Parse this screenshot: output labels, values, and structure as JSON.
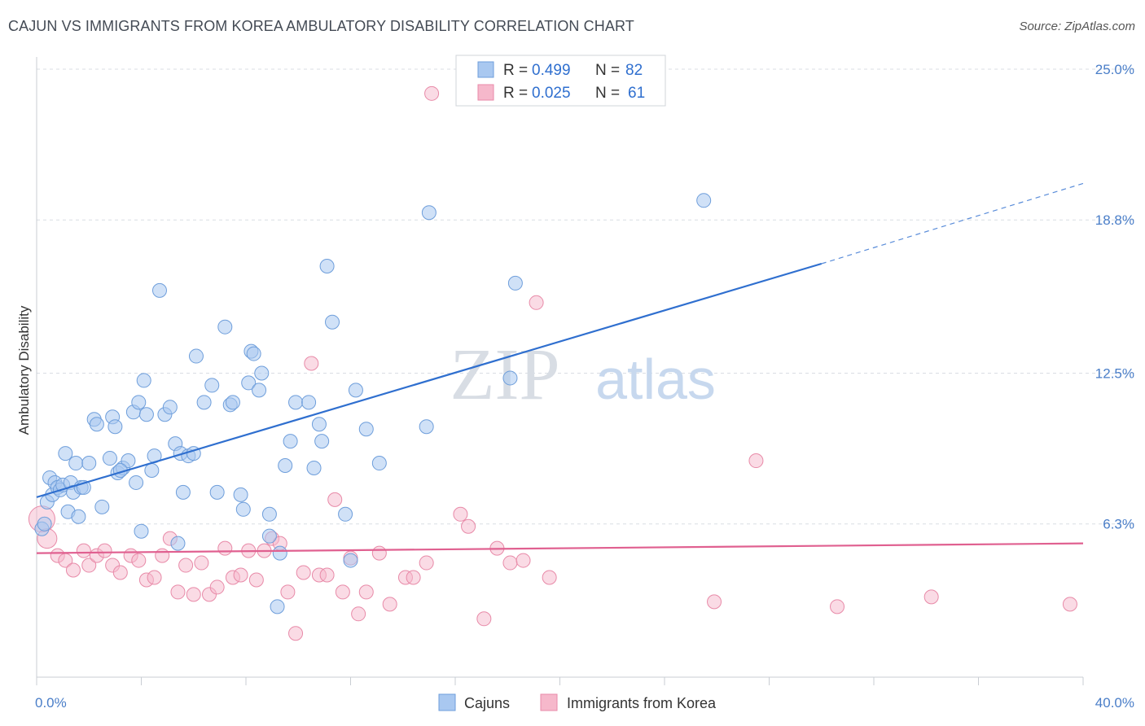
{
  "title": "CAJUN VS IMMIGRANTS FROM KOREA AMBULATORY DISABILITY CORRELATION CHART",
  "source": "Source: ZipAtlas.com",
  "watermark": {
    "zip": "ZIP",
    "atlas": "atlas"
  },
  "colors": {
    "cajun_fill": "#a9c8f0",
    "cajun_stroke": "#6e9edb",
    "cajun_line": "#2f6fcf",
    "korea_fill": "#f6b8cb",
    "korea_stroke": "#e88aa8",
    "korea_line": "#e06090",
    "grid": "#d9dde3",
    "tick_label": "#4a7ec8"
  },
  "legend": {
    "rows": [
      {
        "r_label": "R =",
        "r_value": "0.499",
        "n_label": "N =",
        "n_value": "82"
      },
      {
        "r_label": "R =",
        "r_value": "0.025",
        "n_label": "N =",
        "n_value": "61"
      }
    ]
  },
  "chart_data": {
    "type": "scatter",
    "title": "CAJUN VS IMMIGRANTS FROM KOREA AMBULATORY DISABILITY CORRELATION CHART",
    "xlabel": "",
    "ylabel": "Ambulatory Disability",
    "xlim": [
      0,
      40
    ],
    "ylim": [
      0,
      25.5
    ],
    "x_tick_labels": [
      "0.0%",
      "40.0%"
    ],
    "y_ticks": [
      6.3,
      12.5,
      18.8,
      25.0
    ],
    "y_tick_labels": [
      "6.3%",
      "12.5%",
      "18.8%",
      "25.0%"
    ],
    "grid": true,
    "legend_position": "top-center",
    "series": [
      {
        "name": "Cajuns",
        "r": 0.499,
        "n": 82,
        "trend": {
          "x": [
            0,
            30
          ],
          "y": [
            7.4,
            17.0
          ],
          "dashed_to": [
            40,
            20.3
          ]
        },
        "points": [
          [
            0.2,
            6.1
          ],
          [
            0.3,
            6.3
          ],
          [
            0.4,
            7.2
          ],
          [
            0.5,
            8.2
          ],
          [
            0.6,
            7.5
          ],
          [
            0.7,
            8.0
          ],
          [
            0.8,
            7.8
          ],
          [
            0.9,
            7.7
          ],
          [
            1.0,
            7.9
          ],
          [
            1.1,
            9.2
          ],
          [
            1.2,
            6.8
          ],
          [
            1.3,
            8.0
          ],
          [
            1.4,
            7.6
          ],
          [
            1.5,
            8.8
          ],
          [
            1.6,
            6.6
          ],
          [
            1.7,
            7.8
          ],
          [
            1.8,
            7.8
          ],
          [
            2.0,
            8.8
          ],
          [
            2.2,
            10.6
          ],
          [
            2.3,
            10.4
          ],
          [
            2.5,
            7.0
          ],
          [
            2.8,
            9.0
          ],
          [
            2.9,
            10.7
          ],
          [
            3.0,
            10.3
          ],
          [
            3.1,
            8.4
          ],
          [
            3.3,
            8.6
          ],
          [
            3.5,
            8.9
          ],
          [
            3.7,
            10.9
          ],
          [
            3.8,
            8.0
          ],
          [
            3.9,
            11.3
          ],
          [
            4.0,
            6.0
          ],
          [
            4.1,
            12.2
          ],
          [
            4.2,
            10.8
          ],
          [
            4.4,
            8.5
          ],
          [
            4.5,
            9.1
          ],
          [
            4.7,
            15.9
          ],
          [
            4.9,
            10.8
          ],
          [
            5.1,
            11.1
          ],
          [
            5.3,
            9.6
          ],
          [
            5.4,
            5.5
          ],
          [
            5.5,
            9.2
          ],
          [
            5.6,
            7.6
          ],
          [
            5.8,
            9.1
          ],
          [
            6.0,
            9.2
          ],
          [
            6.1,
            13.2
          ],
          [
            6.4,
            11.3
          ],
          [
            6.7,
            12.0
          ],
          [
            6.9,
            7.6
          ],
          [
            7.2,
            14.4
          ],
          [
            7.4,
            11.2
          ],
          [
            7.5,
            11.3
          ],
          [
            7.8,
            7.5
          ],
          [
            7.9,
            6.9
          ],
          [
            8.1,
            12.1
          ],
          [
            8.2,
            13.4
          ],
          [
            8.3,
            13.3
          ],
          [
            8.5,
            11.8
          ],
          [
            8.6,
            12.5
          ],
          [
            8.9,
            6.7
          ],
          [
            8.9,
            5.8
          ],
          [
            9.3,
            5.1
          ],
          [
            9.5,
            8.7
          ],
          [
            9.7,
            9.7
          ],
          [
            9.9,
            11.3
          ],
          [
            10.4,
            11.3
          ],
          [
            10.6,
            8.6
          ],
          [
            10.8,
            10.4
          ],
          [
            10.9,
            9.7
          ],
          [
            11.1,
            16.9
          ],
          [
            11.3,
            14.6
          ],
          [
            11.8,
            6.7
          ],
          [
            12.0,
            4.8
          ],
          [
            12.2,
            11.8
          ],
          [
            12.6,
            10.2
          ],
          [
            13.1,
            8.8
          ],
          [
            14.9,
            10.3
          ],
          [
            15.0,
            19.1
          ],
          [
            18.1,
            12.3
          ],
          [
            18.3,
            16.2
          ],
          [
            25.5,
            19.6
          ],
          [
            9.2,
            2.9
          ],
          [
            3.2,
            8.5
          ]
        ]
      },
      {
        "name": "Immigrants from Korea",
        "r": 0.025,
        "n": 61,
        "trend": {
          "x": [
            0,
            40
          ],
          "y": [
            5.1,
            5.5
          ]
        },
        "points": [
          [
            0.2,
            6.5
          ],
          [
            0.4,
            5.7
          ],
          [
            0.8,
            5.0
          ],
          [
            1.1,
            4.8
          ],
          [
            1.4,
            4.4
          ],
          [
            1.8,
            5.2
          ],
          [
            2.0,
            4.6
          ],
          [
            2.3,
            5.0
          ],
          [
            2.6,
            5.2
          ],
          [
            2.9,
            4.6
          ],
          [
            3.2,
            4.3
          ],
          [
            3.6,
            5.0
          ],
          [
            3.9,
            4.8
          ],
          [
            4.2,
            4.0
          ],
          [
            4.5,
            4.1
          ],
          [
            4.8,
            5.0
          ],
          [
            5.1,
            5.7
          ],
          [
            5.4,
            3.5
          ],
          [
            5.7,
            4.6
          ],
          [
            6.0,
            3.4
          ],
          [
            6.3,
            4.7
          ],
          [
            6.6,
            3.4
          ],
          [
            6.9,
            3.7
          ],
          [
            7.2,
            5.3
          ],
          [
            7.5,
            4.1
          ],
          [
            7.8,
            4.2
          ],
          [
            8.1,
            5.2
          ],
          [
            8.4,
            4.0
          ],
          [
            8.7,
            5.2
          ],
          [
            9.0,
            5.7
          ],
          [
            9.3,
            5.5
          ],
          [
            9.6,
            3.5
          ],
          [
            9.9,
            1.8
          ],
          [
            10.2,
            4.3
          ],
          [
            10.5,
            12.9
          ],
          [
            10.8,
            4.2
          ],
          [
            11.1,
            4.2
          ],
          [
            11.4,
            7.3
          ],
          [
            11.7,
            3.5
          ],
          [
            12.0,
            4.9
          ],
          [
            12.3,
            2.6
          ],
          [
            12.6,
            3.5
          ],
          [
            13.1,
            5.1
          ],
          [
            13.5,
            3.0
          ],
          [
            14.1,
            4.1
          ],
          [
            14.4,
            4.1
          ],
          [
            14.9,
            4.7
          ],
          [
            15.1,
            24.0
          ],
          [
            16.2,
            6.7
          ],
          [
            16.5,
            6.2
          ],
          [
            17.1,
            2.4
          ],
          [
            17.6,
            5.3
          ],
          [
            18.1,
            4.7
          ],
          [
            18.6,
            4.8
          ],
          [
            19.1,
            15.4
          ],
          [
            19.6,
            4.1
          ],
          [
            25.9,
            3.1
          ],
          [
            27.5,
            8.9
          ],
          [
            30.6,
            2.9
          ],
          [
            34.2,
            3.3
          ],
          [
            39.5,
            3.0
          ]
        ]
      }
    ]
  },
  "bottom_legend": [
    "Cajuns",
    "Immigrants from Korea"
  ]
}
